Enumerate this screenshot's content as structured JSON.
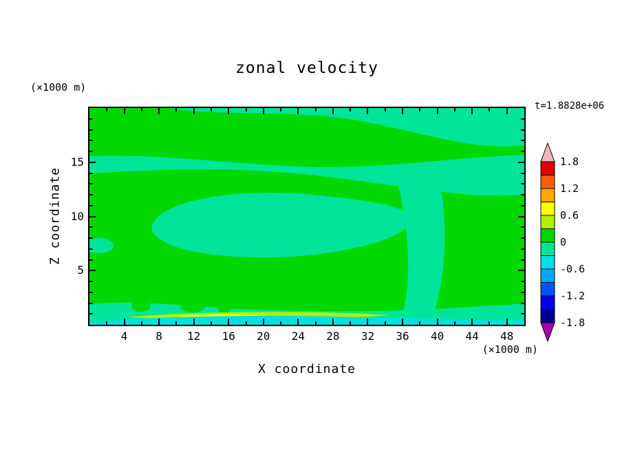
{
  "title": "zonal velocity",
  "time_label": "t=1.8828e+06",
  "axes": {
    "x": {
      "label": "X coordinate",
      "unit": "(×1000 m)",
      "range": [
        0,
        50
      ],
      "major_ticks": [
        4,
        8,
        12,
        16,
        20,
        24,
        28,
        32,
        36,
        40,
        44,
        48
      ],
      "minor_step": 2
    },
    "z": {
      "label": "Z coordinate",
      "unit": "(×1000 m)",
      "range": [
        0,
        20
      ],
      "major_ticks": [
        5,
        10,
        15
      ],
      "minor_step": 1
    }
  },
  "colors": {
    "green": "#00d800",
    "spring_green": "#00e59a",
    "cyan": "#00e0e0",
    "yellow_green": "#b4f000",
    "yellow": "#ffff00"
  },
  "colorbar": {
    "above": {
      "range": "> 1.8",
      "color": "#f0b4be"
    },
    "below": {
      "range": "< -1.8",
      "color": "#aa00aa"
    },
    "segments": [
      {
        "range": "1.5 to 1.8",
        "color": "#e00000"
      },
      {
        "range": "1.2 to 1.5",
        "color": "#ff5c00"
      },
      {
        "range": "0.9 to 1.2",
        "color": "#ffa800"
      },
      {
        "range": "0.6 to 0.9",
        "color": "#ffff00"
      },
      {
        "range": "0.3 to 0.6",
        "color": "#b4f000"
      },
      {
        "range": "0.0 to 0.3",
        "color": "#00d800"
      },
      {
        "range": "-0.3 to 0.0",
        "color": "#00e59a"
      },
      {
        "range": "-0.6 to -0.3",
        "color": "#00e0e0"
      },
      {
        "range": "-0.9 to -0.6",
        "color": "#00a8ff"
      },
      {
        "range": "-1.2 to -0.9",
        "color": "#0054ff"
      },
      {
        "range": "-1.5 to -1.2",
        "color": "#0000e6"
      },
      {
        "range": "-1.8 to -1.5",
        "color": "#000096"
      }
    ],
    "boundary_labels": [
      "1.8",
      "1.2",
      "0.6",
      "0",
      "-0.6",
      "-1.2",
      "-1.8"
    ]
  },
  "chart_data": {
    "type": "heatmap",
    "subtype": "filled_contour",
    "title": "zonal velocity",
    "time_annotation": "t=1.8828e+06",
    "xlabel": "X coordinate",
    "x_units": "×1000 m",
    "ylabel": "Z coordinate",
    "z_units": "×1000 m",
    "x_range": [
      0,
      50
    ],
    "z_range": [
      0,
      20
    ],
    "x_ticks": [
      4,
      8,
      12,
      16,
      20,
      24,
      28,
      32,
      36,
      40,
      44,
      48
    ],
    "z_ticks": [
      5,
      10,
      15
    ],
    "contour_interval": 0.3,
    "levels": [
      -1.8,
      -1.5,
      -1.2,
      -0.9,
      -0.6,
      -0.3,
      0,
      0.3,
      0.6,
      0.9,
      1.2,
      1.5,
      1.8
    ],
    "legend_position": "right vertical colorbar with arrow ends",
    "regions": [
      {
        "value_band": "0 to 0.3",
        "color": "#00d800",
        "extent": "dominant background covering most of the domain"
      },
      {
        "value_band": "-0.3 to 0",
        "color": "#00e59a",
        "extent": "thin horizontal band near z≈14 across full width; patch along top edge widening toward upper-right corner (x≈38-50, z≈17-20); large central patch x≈18-37, z≈6-10; vertical column x≈35-41 from z≈13 down to bottom layer; small patch at left edge near z≈7; bottom layer z≲2 across full width"
      },
      {
        "value_band": "-0.6 to -0.3",
        "color": "#00e0e0",
        "extent": "thin strip along bottom boundary, z≲0.7, nearly full width"
      },
      {
        "value_band": "0.3 to 0.6",
        "color": "#b4f000",
        "extent": "thin lens near bottom, x≈15-35, z≈0.8"
      },
      {
        "value_band": "0.6 to 0.9",
        "color": "#ffff00",
        "extent": "small core inside bottom lens, x≈20-30, z≈0.8"
      }
    ]
  }
}
